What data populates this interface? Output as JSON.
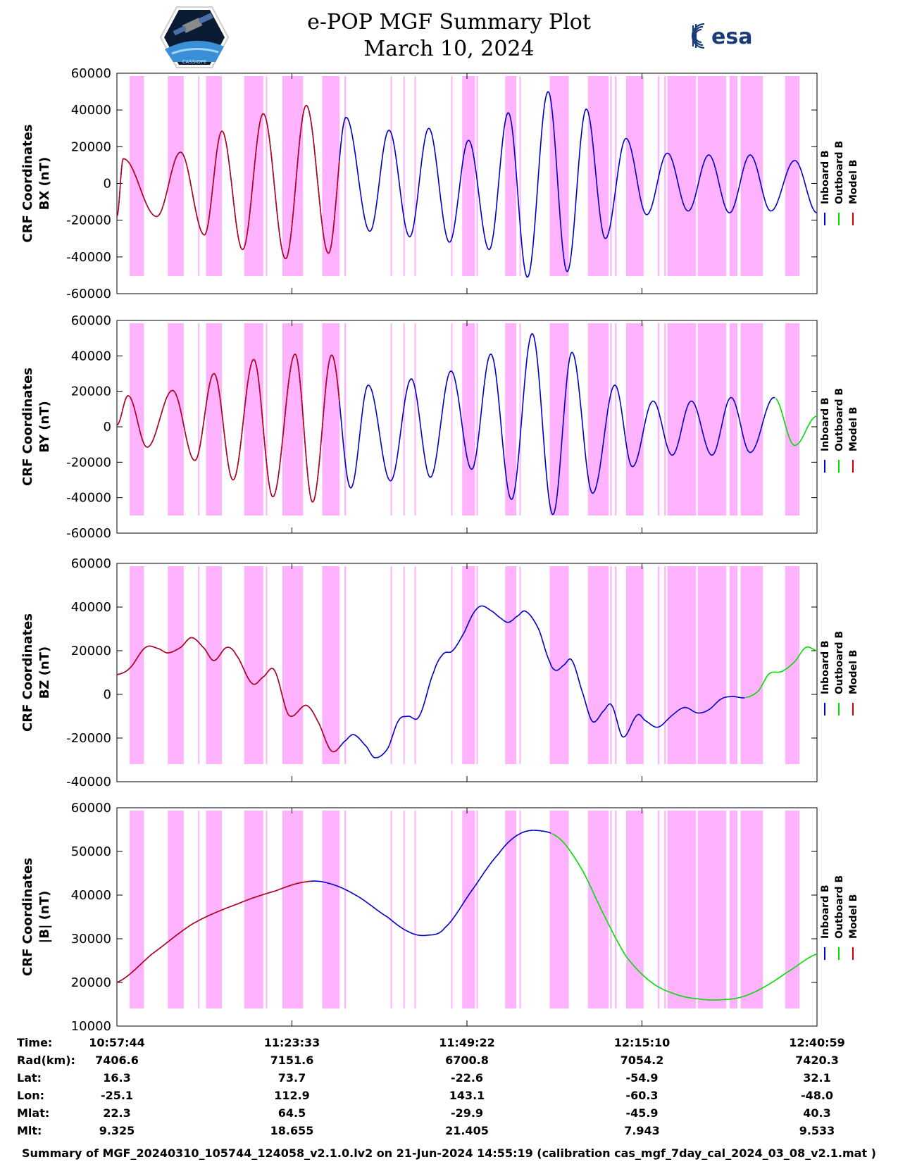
{
  "header": {
    "title": "e-POP MGF Summary Plot",
    "date": "March 10, 2024",
    "logo_right_text": "esa",
    "logo_left_caption": "CASSIOPE"
  },
  "colors": {
    "inboard": "#0000cc",
    "outboard": "#00dd00",
    "model": "#cc0000",
    "shade": "#ffb3ff"
  },
  "legend": [
    "Inboard B",
    "Outboard B",
    "Model B"
  ],
  "chart_data": [
    {
      "type": "line",
      "id": "bx",
      "ylabel": [
        "CRF Coordinates",
        "BX (nT)"
      ],
      "ylim": [
        -60000,
        60000
      ],
      "yticks": [
        -60000,
        -40000,
        -20000,
        0,
        20000,
        40000,
        60000
      ],
      "series_model": "wave",
      "waves": [
        {
          "t": 0.2,
          "v": 13500
        },
        {
          "t": 1.25,
          "v": -18000
        },
        {
          "t": 2.0,
          "v": 17000
        },
        {
          "t": 2.75,
          "v": -28000
        },
        {
          "t": 3.3,
          "v": 28500
        },
        {
          "t": 3.95,
          "v": -36000
        },
        {
          "t": 4.6,
          "v": 38000
        },
        {
          "t": 5.3,
          "v": -41000
        },
        {
          "t": 5.95,
          "v": 42500
        },
        {
          "t": 6.65,
          "v": -38000
        },
        {
          "t": 7.2,
          "v": 36000
        },
        {
          "t": 7.95,
          "v": -26000
        },
        {
          "t": 8.55,
          "v": 29000
        },
        {
          "t": 9.2,
          "v": -29000
        },
        {
          "t": 9.8,
          "v": 30000
        },
        {
          "t": 10.45,
          "v": -32000
        },
        {
          "t": 11.05,
          "v": 23500
        },
        {
          "t": 11.7,
          "v": -36000
        },
        {
          "t": 12.3,
          "v": 38500
        },
        {
          "t": 12.9,
          "v": -51000
        },
        {
          "t": 13.55,
          "v": 50000
        },
        {
          "t": 14.15,
          "v": -48000
        },
        {
          "t": 14.75,
          "v": 40500
        },
        {
          "t": 15.35,
          "v": -30000
        },
        {
          "t": 16.0,
          "v": 24500
        },
        {
          "t": 16.65,
          "v": -17000
        },
        {
          "t": 17.3,
          "v": 16500
        },
        {
          "t": 17.95,
          "v": -15000
        },
        {
          "t": 18.6,
          "v": 15500
        },
        {
          "t": 19.25,
          "v": -16000
        },
        {
          "t": 19.9,
          "v": 15500
        },
        {
          "t": 20.55,
          "v": -15000
        },
        {
          "t": 21.3,
          "v": 12500
        },
        {
          "t": 22.0,
          "v": -16000
        }
      ],
      "start_value": -18000,
      "model_until": 7.0,
      "outboard_from": 22.0
    },
    {
      "type": "line",
      "id": "by",
      "ylabel": [
        "CRF Coordinates",
        "BY (nT)"
      ],
      "ylim": [
        -60000,
        60000
      ],
      "yticks": [
        -60000,
        -40000,
        -20000,
        0,
        20000,
        40000,
        60000
      ],
      "series_model": "wave",
      "waves": [
        {
          "t": 0.35,
          "v": 17500
        },
        {
          "t": 0.95,
          "v": -11500
        },
        {
          "t": 1.75,
          "v": 20500
        },
        {
          "t": 2.45,
          "v": -19000
        },
        {
          "t": 3.05,
          "v": 30000
        },
        {
          "t": 3.65,
          "v": -30000
        },
        {
          "t": 4.3,
          "v": 38000
        },
        {
          "t": 4.9,
          "v": -39500
        },
        {
          "t": 5.6,
          "v": 41000
        },
        {
          "t": 6.15,
          "v": -42500
        },
        {
          "t": 6.75,
          "v": 40500
        },
        {
          "t": 7.35,
          "v": -34500
        },
        {
          "t": 7.9,
          "v": 23500
        },
        {
          "t": 8.6,
          "v": -30500
        },
        {
          "t": 9.25,
          "v": 27000
        },
        {
          "t": 9.85,
          "v": -28500
        },
        {
          "t": 10.5,
          "v": 31500
        },
        {
          "t": 11.15,
          "v": -24000
        },
        {
          "t": 11.75,
          "v": 41000
        },
        {
          "t": 12.4,
          "v": -41000
        },
        {
          "t": 13.05,
          "v": 52500
        },
        {
          "t": 13.7,
          "v": -49500
        },
        {
          "t": 14.3,
          "v": 42000
        },
        {
          "t": 14.95,
          "v": -37500
        },
        {
          "t": 15.65,
          "v": 23500
        },
        {
          "t": 16.2,
          "v": -22500
        },
        {
          "t": 16.85,
          "v": 14500
        },
        {
          "t": 17.45,
          "v": -16000
        },
        {
          "t": 18.05,
          "v": 14500
        },
        {
          "t": 18.7,
          "v": -16000
        },
        {
          "t": 19.3,
          "v": 16500
        },
        {
          "t": 19.9,
          "v": -14500
        },
        {
          "t": 20.65,
          "v": 16500
        },
        {
          "t": 21.3,
          "v": -10500
        },
        {
          "t": 22.0,
          "v": 6000
        }
      ],
      "start_value": 1000,
      "model_until": 7.0,
      "outboard_from": 20.7
    },
    {
      "type": "line",
      "id": "bz",
      "ylabel": [
        "CRF Coordinates",
        "BZ (nT)"
      ],
      "ylim": [
        -40000,
        60000
      ],
      "yticks": [
        -40000,
        -20000,
        0,
        20000,
        40000,
        60000
      ],
      "series_model": "points",
      "points": [
        [
          0.0,
          9000
        ],
        [
          0.4,
          12000
        ],
        [
          0.9,
          21500
        ],
        [
          1.3,
          21000
        ],
        [
          1.6,
          19000
        ],
        [
          2.0,
          21500
        ],
        [
          2.35,
          26000
        ],
        [
          2.75,
          21000
        ],
        [
          3.05,
          15500
        ],
        [
          3.45,
          21500
        ],
        [
          3.75,
          18000
        ],
        [
          4.25,
          5000
        ],
        [
          4.6,
          8000
        ],
        [
          4.95,
          11000
        ],
        [
          5.4,
          -9500
        ],
        [
          5.95,
          -5000
        ],
        [
          6.3,
          -12000
        ],
        [
          6.75,
          -26000
        ],
        [
          7.2,
          -21000
        ],
        [
          7.45,
          -18500
        ],
        [
          7.85,
          -24000
        ],
        [
          8.1,
          -29000
        ],
        [
          8.5,
          -25000
        ],
        [
          8.85,
          -12000
        ],
        [
          9.15,
          -10000
        ],
        [
          9.5,
          -10000
        ],
        [
          9.95,
          10000
        ],
        [
          10.25,
          18500
        ],
        [
          10.55,
          20000
        ],
        [
          10.9,
          28000
        ],
        [
          11.2,
          37000
        ],
        [
          11.45,
          40500
        ],
        [
          11.8,
          38000
        ],
        [
          12.05,
          35000
        ],
        [
          12.3,
          33000
        ],
        [
          12.6,
          36000
        ],
        [
          12.85,
          38000
        ],
        [
          13.25,
          30000
        ],
        [
          13.6,
          15000
        ],
        [
          13.8,
          11000
        ],
        [
          14.05,
          13500
        ],
        [
          14.3,
          15500
        ],
        [
          14.65,
          0
        ],
        [
          14.95,
          -12500
        ],
        [
          15.3,
          -7500
        ],
        [
          15.55,
          -5000
        ],
        [
          15.9,
          -19500
        ],
        [
          16.35,
          -9500
        ],
        [
          16.6,
          -12000
        ],
        [
          17.0,
          -15000
        ],
        [
          17.5,
          -9000
        ],
        [
          17.85,
          -6000
        ],
        [
          18.25,
          -8500
        ],
        [
          18.6,
          -7000
        ],
        [
          19.0,
          -2000
        ],
        [
          19.35,
          -1000
        ],
        [
          19.75,
          -1500
        ],
        [
          20.15,
          1500
        ],
        [
          20.5,
          9500
        ],
        [
          20.9,
          10500
        ],
        [
          21.3,
          15000
        ],
        [
          21.65,
          21500
        ],
        [
          22.0,
          20000
        ]
      ],
      "model_until": 7.0,
      "outboard_from": 19.75
    },
    {
      "type": "line",
      "id": "bmag",
      "ylabel": [
        "CRF Coordinates",
        "|B| (nT)"
      ],
      "ylim": [
        10000,
        60000
      ],
      "yticks": [
        10000,
        20000,
        30000,
        40000,
        50000,
        60000
      ],
      "series_model": "points",
      "points": [
        [
          0.0,
          20000
        ],
        [
          1.1,
          26500
        ],
        [
          2.4,
          33500
        ],
        [
          3.8,
          38000
        ],
        [
          5.0,
          41000
        ],
        [
          5.9,
          43000
        ],
        [
          6.6,
          42800
        ],
        [
          7.5,
          40000
        ],
        [
          8.5,
          35000
        ],
        [
          9.2,
          31500
        ],
        [
          9.75,
          30800
        ],
        [
          10.3,
          32500
        ],
        [
          11.2,
          41500
        ],
        [
          12.0,
          49500
        ],
        [
          12.6,
          53800
        ],
        [
          13.2,
          54800
        ],
        [
          13.9,
          53000
        ],
        [
          14.6,
          46000
        ],
        [
          15.3,
          35500
        ],
        [
          16.0,
          26000
        ],
        [
          16.8,
          20000
        ],
        [
          17.6,
          17200
        ],
        [
          18.3,
          16200
        ],
        [
          18.9,
          16000
        ],
        [
          19.6,
          16600
        ],
        [
          20.3,
          18800
        ],
        [
          21.1,
          22500
        ],
        [
          22.0,
          26500
        ]
      ],
      "model_until": 6.1,
      "outboard_from": 13.65
    }
  ],
  "shade_bands": [
    [
      0.4,
      0.85
    ],
    [
      1.6,
      2.1
    ],
    [
      2.55,
      2.58
    ],
    [
      2.8,
      3.3
    ],
    [
      4.0,
      4.6
    ],
    [
      4.68,
      4.7
    ],
    [
      5.2,
      5.85
    ],
    [
      6.45,
      7.0
    ],
    [
      7.15,
      7.2
    ],
    [
      8.6,
      8.62
    ],
    [
      9.0,
      9.02
    ],
    [
      9.35,
      9.37
    ],
    [
      10.5,
      10.52
    ],
    [
      10.85,
      11.25
    ],
    [
      11.3,
      11.32
    ],
    [
      12.2,
      12.55
    ],
    [
      12.65,
      12.67
    ],
    [
      13.6,
      14.2
    ],
    [
      14.8,
      15.45
    ],
    [
      15.5,
      15.55
    ],
    [
      15.65,
      15.7
    ],
    [
      16.0,
      16.55
    ],
    [
      17.0,
      17.05
    ],
    [
      17.2,
      17.25
    ],
    [
      17.3,
      18.2
    ],
    [
      18.25,
      19.15
    ],
    [
      19.25,
      19.5
    ],
    [
      19.6,
      20.3
    ],
    [
      21.0,
      21.45
    ]
  ],
  "x_ticks": [
    {
      "t": 0.0,
      "label": "10:57:44"
    },
    {
      "t": 5.5,
      "label": "11:23:33"
    },
    {
      "t": 11.0,
      "label": "11:49:22"
    },
    {
      "t": 16.5,
      "label": "12:15:10"
    },
    {
      "t": 22.0,
      "label": "12:40:59"
    }
  ],
  "ephemeris": {
    "rows": [
      {
        "label": "Time:",
        "values": [
          "10:57:44",
          "11:23:33",
          "11:49:22",
          "12:15:10",
          "12:40:59"
        ]
      },
      {
        "label": "Rad(km):",
        "values": [
          "7406.6",
          "7151.6",
          "6700.8",
          "7054.2",
          "7420.3"
        ]
      },
      {
        "label": "Lat:",
        "values": [
          "16.3",
          "73.7",
          "-22.6",
          "-54.9",
          "32.1"
        ]
      },
      {
        "label": "Lon:",
        "values": [
          "-25.1",
          "112.9",
          "143.1",
          "-60.3",
          "-48.0"
        ]
      },
      {
        "label": "Mlat:",
        "values": [
          "22.3",
          "64.5",
          "-29.9",
          "-45.9",
          "40.3"
        ]
      },
      {
        "label": "Mlt:",
        "values": [
          "9.325",
          "18.655",
          "21.405",
          "7.943",
          "9.533"
        ]
      }
    ]
  },
  "footer": "Summary of MGF_20240310_105744_124058_v2.1.0.lv2 on 21-Jun-2024 14:55:19 (calibration cas_mgf_7day_cal_2024_03_08_v2.1.mat )"
}
